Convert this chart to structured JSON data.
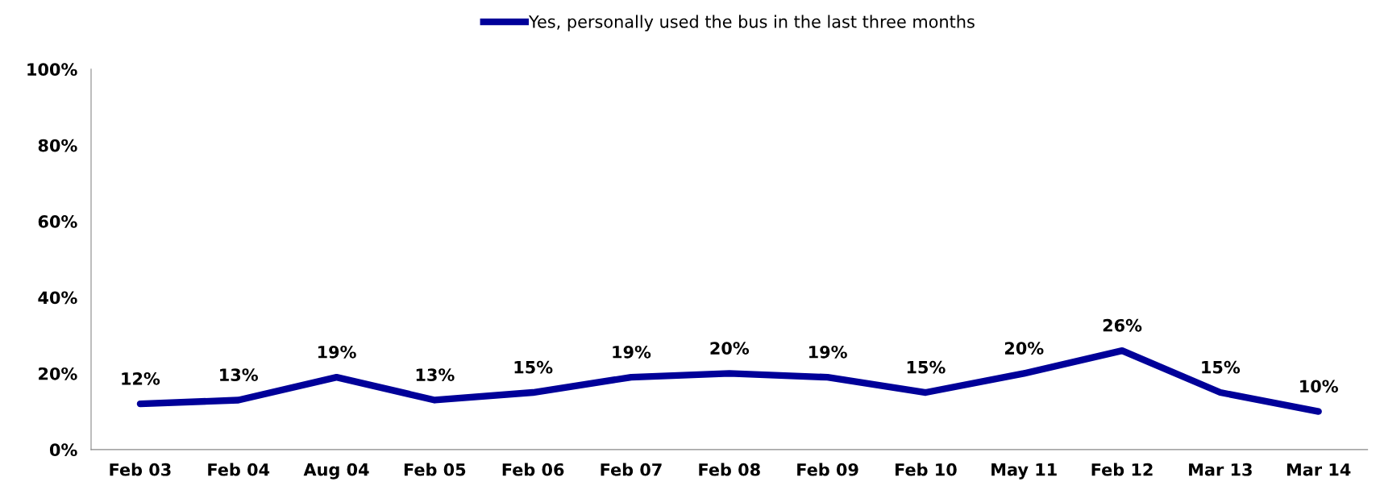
{
  "chart_data": {
    "type": "line",
    "categories": [
      "Feb 03",
      "Feb 04",
      "Aug 04",
      "Feb 05",
      "Feb 06",
      "Feb 07",
      "Feb 08",
      "Feb 09",
      "Feb 10",
      "May 11",
      "Feb 12",
      "Mar 13",
      "Mar 14"
    ],
    "series": [
      {
        "name": "Yes, personally used the bus in the last three months",
        "color": "#000099",
        "values": [
          12,
          13,
          19,
          13,
          15,
          19,
          20,
          19,
          15,
          20,
          26,
          15,
          10
        ],
        "value_labels": [
          "12%",
          "13%",
          "19%",
          "13%",
          "15%",
          "19%",
          "20%",
          "19%",
          "15%",
          "20%",
          "26%",
          "15%",
          "10%"
        ]
      }
    ],
    "ylim": [
      0,
      100
    ],
    "yticks": [
      {
        "value": 0,
        "label": "0%"
      },
      {
        "value": 20,
        "label": "20%"
      },
      {
        "value": 40,
        "label": "40%"
      },
      {
        "value": 60,
        "label": "60%"
      },
      {
        "value": 80,
        "label": "80%"
      },
      {
        "value": 100,
        "label": "100%"
      }
    ],
    "grid": false,
    "legend": "top",
    "marker": "none",
    "line_style": "solid"
  }
}
